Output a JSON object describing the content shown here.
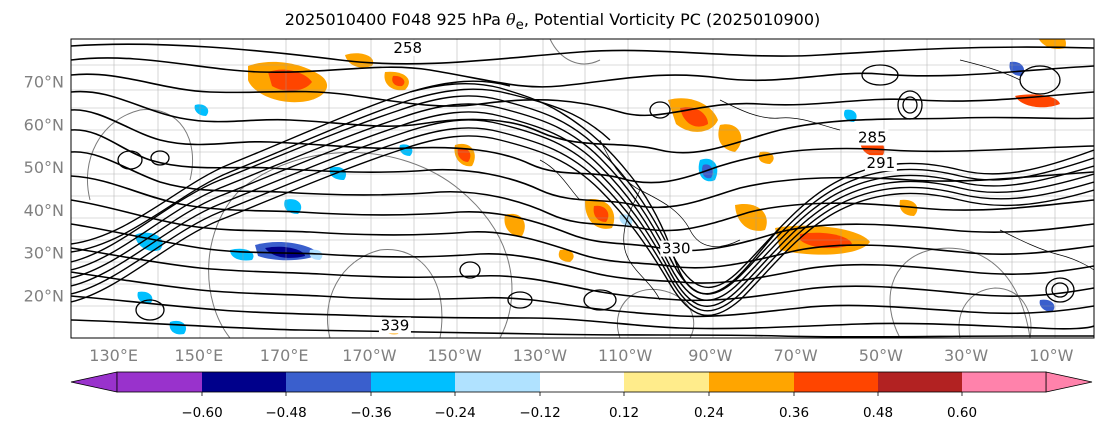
{
  "title": {
    "prefix": "2025010400 F048 925 hPa ",
    "theta": "θ",
    "theta_sub": "e",
    "suffix": ", Potential Vorticity PC (2025010900)"
  },
  "map": {
    "lat_labels": [
      "70°N",
      "60°N",
      "50°N",
      "40°N",
      "30°N",
      "20°N"
    ],
    "lat_values": [
      70,
      60,
      50,
      40,
      30,
      20
    ],
    "lon_labels": [
      "130°E",
      "150°E",
      "170°E",
      "170°W",
      "150°W",
      "130°W",
      "110°W",
      "90°W",
      "70°W",
      "50°W",
      "30°W",
      "10°W"
    ],
    "lat_range": [
      10,
      80
    ],
    "contour_labels": [
      {
        "text": "258",
        "lon": 199,
        "lat": 77
      },
      {
        "text": "285",
        "lon": 308,
        "lat": 56
      },
      {
        "text": "291",
        "lon": 310,
        "lat": 50
      },
      {
        "text": "339",
        "lon": 196,
        "lat": 12
      },
      {
        "text": "330",
        "lon": 262,
        "lat": 30
      }
    ]
  },
  "colorbar": {
    "colors": [
      "#9932CC",
      "#00008B",
      "#3A5FCD",
      "#00BFFF",
      "#B0E2FF",
      "#FFFFFF",
      "#FFEC8B",
      "#FFA500",
      "#FF4500",
      "#B22222",
      "#FF82AB"
    ],
    "tick_labels": [
      "−0.60",
      "−0.48",
      "−0.36",
      "−0.24",
      "−0.12",
      "0.12",
      "0.24",
      "0.36",
      "0.48",
      "0.60"
    ]
  }
}
